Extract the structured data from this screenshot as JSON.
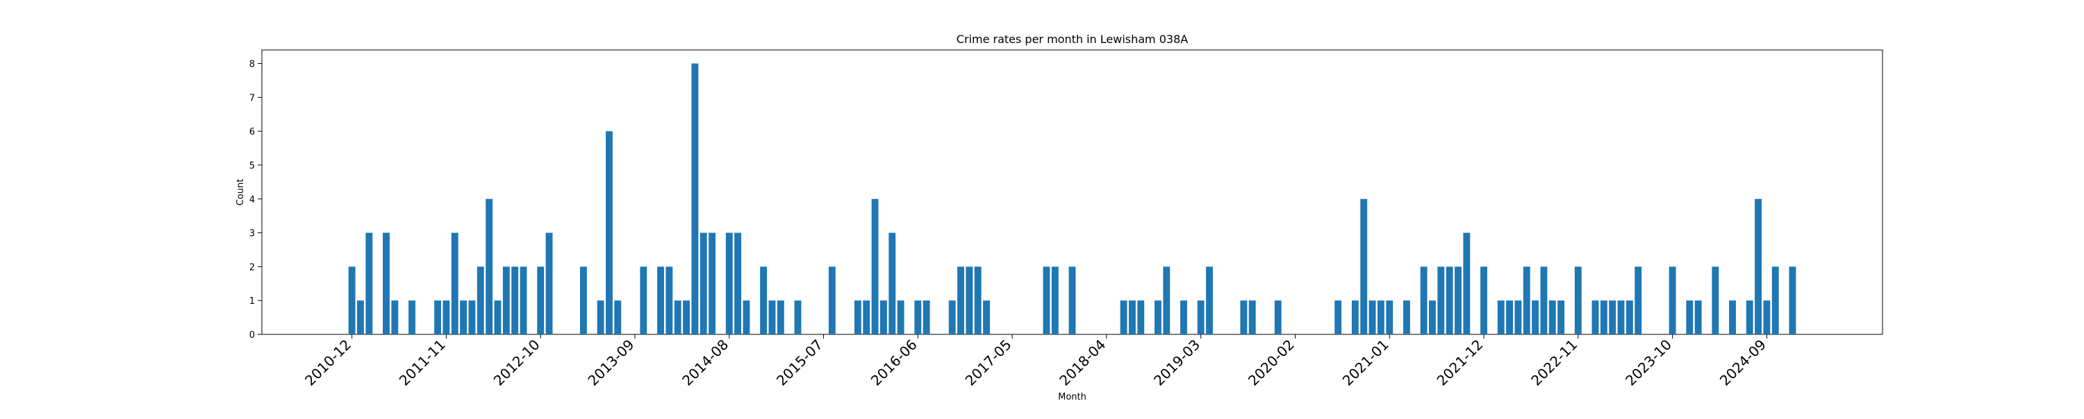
{
  "chart_data": {
    "type": "bar",
    "title": "Crime rates per month in Lewisham 038A",
    "xlabel": "Month",
    "ylabel": "Count",
    "ylim": [
      0,
      8.4
    ],
    "yticks": [
      0,
      1,
      2,
      3,
      4,
      5,
      6,
      7,
      8
    ],
    "xticks": [
      "2010-12",
      "2011-11",
      "2012-10",
      "2013-09",
      "2014-08",
      "2015-07",
      "2016-06",
      "2017-05",
      "2018-04",
      "2019-03",
      "2020-02",
      "2021-01",
      "2021-12",
      "2022-11",
      "2023-10",
      "2024-09"
    ],
    "grid": false,
    "legend": "none",
    "bar_color": "#1f77b4",
    "series": [
      {
        "x": [
          "2010-12",
          "2011-01",
          "2011-02",
          "2011-04",
          "2011-05",
          "2011-07",
          "2011-10",
          "2011-11",
          "2011-12",
          "2012-01",
          "2012-02",
          "2012-03",
          "2012-04",
          "2012-05",
          "2012-06",
          "2012-07",
          "2012-08",
          "2012-10",
          "2012-11",
          "2013-03",
          "2013-05",
          "2013-06",
          "2013-07",
          "2013-10",
          "2013-12",
          "2014-01",
          "2014-02",
          "2014-03",
          "2014-04",
          "2014-05",
          "2014-06",
          "2014-08",
          "2014-09",
          "2014-10",
          "2014-12",
          "2015-01",
          "2015-02",
          "2015-04",
          "2015-08",
          "2015-11",
          "2015-12",
          "2016-01",
          "2016-02",
          "2016-03",
          "2016-04",
          "2016-06",
          "2016-07",
          "2016-10",
          "2016-11",
          "2016-12",
          "2017-01",
          "2017-02",
          "2017-09",
          "2017-10",
          "2017-12",
          "2018-06",
          "2018-07",
          "2018-08",
          "2018-10",
          "2018-11",
          "2019-01",
          "2019-03",
          "2019-04",
          "2019-08",
          "2019-09",
          "2019-12",
          "2020-07",
          "2020-09",
          "2020-10",
          "2020-11",
          "2020-12",
          "2021-01",
          "2021-03",
          "2021-05",
          "2021-06",
          "2021-07",
          "2021-08",
          "2021-09",
          "2021-10",
          "2021-12",
          "2022-02",
          "2022-03",
          "2022-04",
          "2022-05",
          "2022-06",
          "2022-07",
          "2022-08",
          "2022-09",
          "2022-11",
          "2023-01",
          "2023-02",
          "2023-03",
          "2023-04",
          "2023-05",
          "2023-06",
          "2023-10",
          "2023-12",
          "2024-01",
          "2024-03",
          "2024-05",
          "2024-07",
          "2024-08",
          "2024-09",
          "2024-10",
          "2024-12"
        ],
        "values": [
          2,
          1,
          3,
          3,
          1,
          1,
          1,
          1,
          3,
          1,
          1,
          2,
          4,
          1,
          2,
          2,
          2,
          2,
          3,
          2,
          1,
          6,
          1,
          2,
          2,
          2,
          1,
          1,
          8,
          3,
          3,
          3,
          3,
          1,
          2,
          1,
          1,
          1,
          2,
          1,
          1,
          4,
          1,
          3,
          1,
          1,
          1,
          1,
          2,
          2,
          2,
          1,
          2,
          2,
          2,
          1,
          1,
          1,
          1,
          2,
          1,
          1,
          2,
          1,
          1,
          1,
          1,
          1,
          4,
          1,
          1,
          1,
          1,
          2,
          1,
          2,
          2,
          2,
          3,
          2,
          1,
          1,
          1,
          2,
          1,
          2,
          1,
          1,
          2,
          1,
          1,
          1,
          1,
          1,
          2,
          2,
          1,
          1,
          2,
          1,
          1,
          4,
          1,
          2,
          2
        ]
      }
    ]
  }
}
